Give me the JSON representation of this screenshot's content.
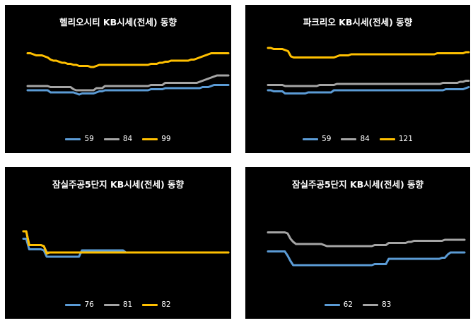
{
  "chart_data": [
    {
      "type": "line",
      "title": "헬리오시티 KB시세(전세) 동향",
      "legend_position": "bottom",
      "grid": false,
      "x": [
        1,
        2,
        3,
        4,
        5,
        6,
        7,
        8,
        9,
        10,
        11,
        12,
        13,
        14,
        15,
        16,
        17,
        18,
        19,
        20,
        21,
        22,
        23,
        24,
        25,
        26,
        27,
        28,
        29,
        30,
        31,
        32,
        33,
        34,
        35,
        36,
        37,
        38,
        39,
        40,
        41,
        42,
        43,
        44,
        45,
        46,
        47,
        48,
        49,
        50,
        51,
        52,
        53,
        54,
        55,
        56,
        57,
        58,
        59,
        60,
        61,
        62,
        63,
        64,
        65,
        66,
        67,
        68,
        69,
        70,
        71
      ],
      "ylim": [
        0,
        100
      ],
      "series": [
        {
          "name": "59",
          "color": "#5b9bd5",
          "values": [
            38,
            38,
            38,
            38,
            38,
            38,
            38,
            38,
            36,
            36,
            36,
            36,
            36,
            36,
            36,
            36,
            36,
            35,
            34,
            35,
            35,
            35,
            35,
            35,
            36,
            37,
            37,
            38,
            38,
            38,
            38,
            38,
            38,
            38,
            38,
            38,
            38,
            38,
            38,
            38,
            38,
            38,
            38,
            39,
            39,
            39,
            39,
            39,
            40,
            40,
            40,
            40,
            40,
            40,
            40,
            40,
            40,
            40,
            40,
            40,
            40,
            41,
            41,
            41,
            42,
            43,
            43,
            43,
            43,
            43,
            43
          ]
        },
        {
          "name": "84",
          "color": "#a5a5a5",
          "values": [
            42,
            42,
            42,
            42,
            42,
            42,
            42,
            42,
            41,
            41,
            41,
            41,
            41,
            41,
            41,
            41,
            39,
            38,
            38,
            38,
            38,
            38,
            38,
            38,
            40,
            40,
            40,
            42,
            42,
            42,
            42,
            42,
            42,
            42,
            42,
            42,
            42,
            42,
            42,
            42,
            42,
            42,
            42,
            43,
            43,
            43,
            43,
            43,
            45,
            45,
            45,
            45,
            45,
            45,
            45,
            45,
            45,
            45,
            45,
            45,
            46,
            47,
            48,
            49,
            50,
            51,
            52,
            52,
            52,
            52,
            52
          ]
        },
        {
          "name": "99",
          "color": "#ffc000",
          "values": [
            73,
            73,
            72,
            71,
            71,
            71,
            70,
            69,
            67,
            66,
            66,
            65,
            64,
            64,
            63,
            63,
            62,
            62,
            61,
            61,
            61,
            61,
            60,
            60,
            61,
            62,
            62,
            62,
            62,
            62,
            62,
            62,
            62,
            62,
            62,
            62,
            62,
            62,
            62,
            62,
            62,
            62,
            62,
            63,
            63,
            63,
            64,
            64,
            65,
            65,
            66,
            66,
            66,
            66,
            66,
            66,
            66,
            67,
            67,
            68,
            69,
            70,
            71,
            72,
            73,
            73,
            73,
            73,
            73,
            73,
            73
          ]
        }
      ]
    },
    {
      "type": "line",
      "title": "파크리오 KB시세(전세) 동향",
      "legend_position": "bottom",
      "grid": false,
      "x": [
        1,
        2,
        3,
        4,
        5,
        6,
        7,
        8,
        9,
        10,
        11,
        12,
        13,
        14,
        15,
        16,
        17,
        18,
        19,
        20,
        21,
        22,
        23,
        24,
        25,
        26,
        27,
        28,
        29,
        30,
        31,
        32,
        33,
        34,
        35,
        36,
        37,
        38,
        39,
        40,
        41,
        42,
        43,
        44,
        45,
        46,
        47,
        48,
        49,
        50,
        51,
        52,
        53,
        54,
        55,
        56,
        57,
        58,
        59,
        60,
        61,
        62,
        63,
        64,
        65,
        66,
        67,
        68,
        69,
        70,
        71
      ],
      "ylim": [
        0,
        100
      ],
      "series": [
        {
          "name": "59",
          "color": "#5b9bd5",
          "values": [
            38,
            38,
            37,
            37,
            37,
            37,
            35,
            35,
            35,
            35,
            35,
            35,
            35,
            35,
            36,
            36,
            36,
            36,
            36,
            36,
            36,
            36,
            36,
            38,
            38,
            38,
            38,
            38,
            38,
            38,
            38,
            38,
            38,
            38,
            38,
            38,
            38,
            38,
            38,
            38,
            38,
            38,
            38,
            38,
            38,
            38,
            38,
            38,
            38,
            38,
            38,
            38,
            38,
            38,
            38,
            38,
            38,
            38,
            38,
            38,
            38,
            38,
            39,
            39,
            39,
            39,
            39,
            39,
            39,
            40,
            41
          ]
        },
        {
          "name": "84",
          "color": "#a5a5a5",
          "values": [
            43,
            43,
            43,
            43,
            43,
            43,
            42,
            42,
            42,
            42,
            42,
            42,
            42,
            42,
            42,
            42,
            42,
            42,
            43,
            43,
            43,
            43,
            43,
            43,
            44,
            44,
            44,
            44,
            44,
            44,
            44,
            44,
            44,
            44,
            44,
            44,
            44,
            44,
            44,
            44,
            44,
            44,
            44,
            44,
            44,
            44,
            44,
            44,
            44,
            44,
            44,
            44,
            44,
            44,
            44,
            44,
            44,
            44,
            44,
            44,
            44,
            45,
            45,
            45,
            45,
            45,
            45,
            46,
            46,
            47,
            47
          ]
        },
        {
          "name": "121",
          "color": "#ffc000",
          "values": [
            78,
            78,
            77,
            77,
            77,
            77,
            76,
            75,
            70,
            69,
            69,
            69,
            69,
            69,
            69,
            69,
            69,
            69,
            69,
            69,
            69,
            69,
            69,
            69,
            70,
            71,
            71,
            71,
            71,
            72,
            72,
            72,
            72,
            72,
            72,
            72,
            72,
            72,
            72,
            72,
            72,
            72,
            72,
            72,
            72,
            72,
            72,
            72,
            72,
            72,
            72,
            72,
            72,
            72,
            72,
            72,
            72,
            72,
            72,
            73,
            73,
            73,
            73,
            73,
            73,
            73,
            73,
            73,
            73,
            74,
            74
          ]
        }
      ]
    },
    {
      "type": "line",
      "title": "잠실주공5단지 KB시세(전세) 동향",
      "legend_position": "bottom",
      "grid": false,
      "x": [
        1,
        2,
        3,
        4,
        5,
        6,
        7,
        8,
        9,
        10,
        11,
        12,
        13,
        14,
        15,
        16,
        17,
        18,
        19,
        20,
        21,
        22,
        23,
        24,
        25,
        26,
        27,
        28,
        29,
        30,
        31,
        32,
        33,
        34,
        35,
        36,
        37,
        38,
        39,
        40,
        41,
        42,
        43,
        44,
        45,
        46,
        47,
        48,
        49,
        50,
        51,
        52,
        53,
        54,
        55,
        56,
        57,
        58,
        59,
        60,
        61,
        62,
        63,
        64,
        65,
        66,
        67,
        68,
        69,
        70,
        71
      ],
      "ylim": [
        0,
        100
      ],
      "series": [
        {
          "name": "76",
          "color": "#5b9bd5",
          "values": [
            59,
            59,
            49,
            49,
            49,
            49,
            49,
            48,
            42,
            42,
            42,
            42,
            42,
            42,
            42,
            42,
            42,
            42,
            42,
            42,
            48,
            48,
            48,
            48,
            48,
            48,
            48,
            48,
            48,
            48,
            48,
            48,
            48,
            48,
            48,
            46,
            46,
            46,
            46,
            46,
            46,
            46,
            46,
            46,
            46,
            46,
            46,
            46,
            46,
            46,
            46,
            46,
            46,
            46,
            46,
            46,
            46,
            46,
            46,
            46,
            46,
            46,
            46,
            46,
            46,
            46,
            46,
            46,
            46,
            46,
            46
          ]
        },
        {
          "name": "81",
          "color": "#a5a5a5",
          "values": [
            66,
            66,
            53,
            53,
            53,
            53,
            53,
            52,
            46,
            46,
            46,
            46,
            46,
            46,
            46,
            46,
            46,
            46,
            46,
            46,
            46,
            46,
            46,
            46,
            46,
            46,
            46,
            46,
            46,
            46,
            46,
            46,
            46,
            46,
            46,
            46,
            46,
            46,
            46,
            46,
            46,
            46,
            46,
            46,
            46,
            46,
            46,
            46,
            46,
            46,
            46,
            46,
            46,
            46,
            46,
            46,
            46,
            46,
            46,
            46,
            46,
            46,
            46,
            46,
            46,
            46,
            46,
            46,
            46,
            46,
            46
          ]
        },
        {
          "name": "82",
          "color": "#ffc000",
          "values": [
            66,
            66,
            53,
            53,
            53,
            53,
            53,
            52,
            45,
            46,
            46,
            46,
            46,
            46,
            46,
            46,
            46,
            46,
            46,
            46,
            46,
            46,
            46,
            46,
            46,
            46,
            46,
            46,
            46,
            46,
            46,
            46,
            46,
            46,
            46,
            46,
            46,
            46,
            46,
            46,
            46,
            46,
            46,
            46,
            46,
            46,
            46,
            46,
            46,
            46,
            46,
            46,
            46,
            46,
            46,
            46,
            46,
            46,
            46,
            46,
            46,
            46,
            46,
            46,
            46,
            46,
            46,
            46,
            46,
            46,
            46
          ]
        }
      ]
    },
    {
      "type": "line",
      "title": "잠실주공5단지 KB시세(전세) 동향",
      "legend_position": "bottom",
      "grid": false,
      "x": [
        1,
        2,
        3,
        4,
        5,
        6,
        7,
        8,
        9,
        10,
        11,
        12,
        13,
        14,
        15,
        16,
        17,
        18,
        19,
        20,
        21,
        22,
        23,
        24,
        25,
        26,
        27,
        28,
        29,
        30,
        31,
        32,
        33,
        34,
        35,
        36,
        37,
        38,
        39,
        40,
        41,
        42,
        43,
        44,
        45,
        46,
        47,
        48,
        49,
        50,
        51,
        52,
        53,
        54,
        55,
        56,
        57,
        58,
        59,
        60,
        61,
        62,
        63,
        64,
        65,
        66,
        67,
        68,
        69,
        70,
        71
      ],
      "ylim": [
        0,
        100
      ],
      "series": [
        {
          "name": "62",
          "color": "#5b9bd5",
          "values": [
            47,
            47,
            47,
            47,
            47,
            47,
            47,
            43,
            38,
            34,
            34,
            34,
            34,
            34,
            34,
            34,
            34,
            34,
            34,
            34,
            34,
            34,
            34,
            34,
            34,
            34,
            34,
            34,
            34,
            34,
            34,
            34,
            34,
            34,
            34,
            34,
            34,
            34,
            35,
            35,
            35,
            35,
            35,
            40,
            40,
            40,
            40,
            40,
            40,
            40,
            40,
            40,
            40,
            40,
            40,
            40,
            40,
            40,
            40,
            40,
            40,
            40,
            41,
            41,
            44,
            46,
            46,
            46,
            46,
            46,
            46
          ]
        },
        {
          "name": "83",
          "color": "#a5a5a5",
          "values": [
            65,
            65,
            65,
            65,
            65,
            65,
            65,
            64,
            59,
            56,
            54,
            54,
            54,
            54,
            54,
            54,
            54,
            54,
            54,
            54,
            53,
            52,
            52,
            52,
            52,
            52,
            52,
            52,
            52,
            52,
            52,
            52,
            52,
            52,
            52,
            52,
            52,
            52,
            53,
            53,
            53,
            53,
            53,
            55,
            55,
            55,
            55,
            55,
            55,
            55,
            56,
            56,
            57,
            57,
            57,
            57,
            57,
            57,
            57,
            57,
            57,
            57,
            57,
            58,
            58,
            58,
            58,
            58,
            58,
            58,
            58
          ]
        }
      ]
    }
  ]
}
